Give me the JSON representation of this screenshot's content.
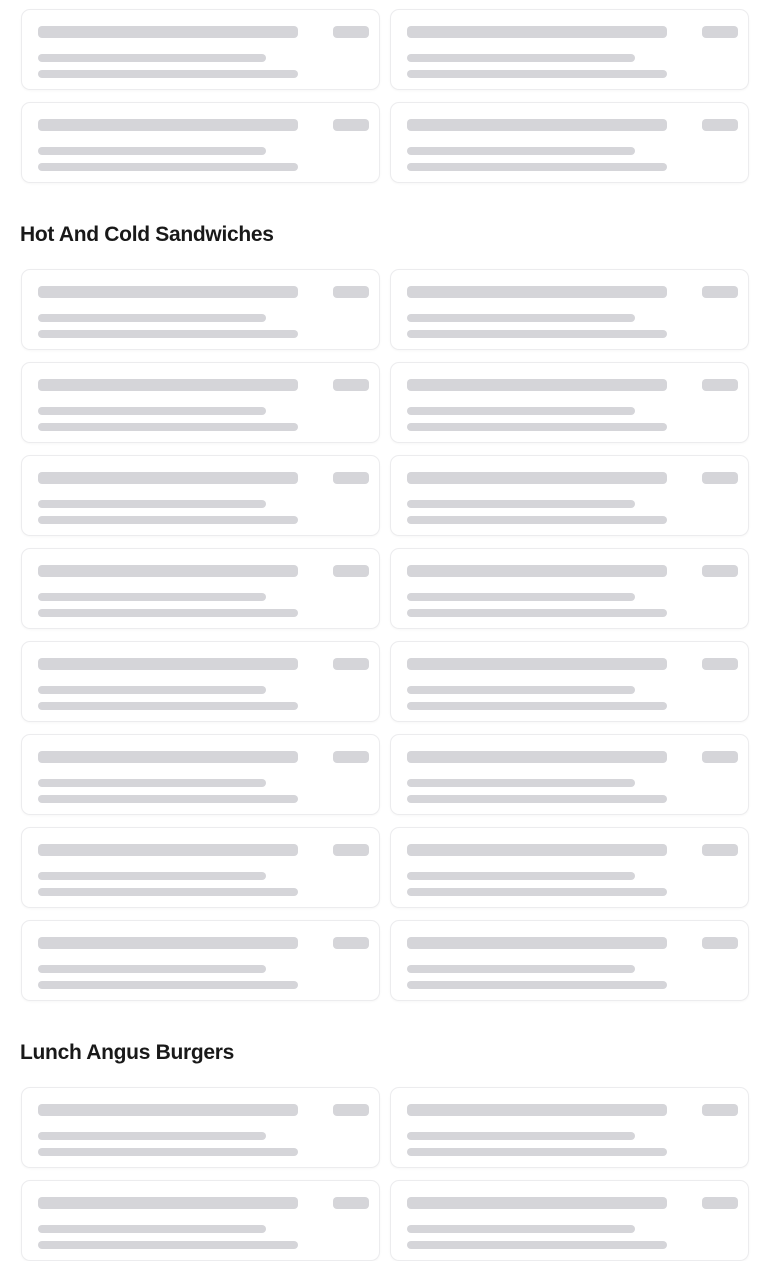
{
  "colors": {
    "skeleton": "#d5d5d9",
    "card_border": "#ececee",
    "heading": "#191919"
  },
  "sections": [
    {
      "title": "",
      "skeleton_items": 4
    },
    {
      "title": "Hot And Cold Sandwiches",
      "skeleton_items": 16
    },
    {
      "title": "Lunch Angus Burgers",
      "skeleton_items": 4
    }
  ]
}
